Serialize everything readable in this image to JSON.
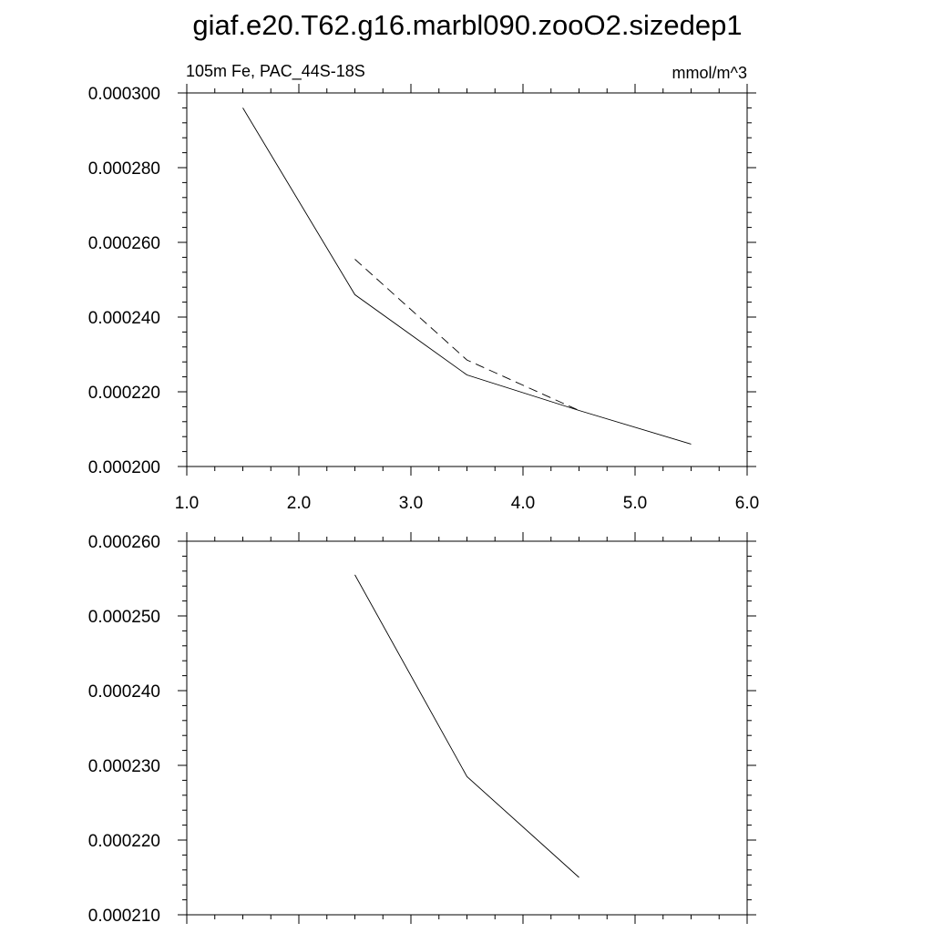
{
  "title": "giaf.e20.T62.g16.marbl090.zooO2.sizedep1",
  "chart_data": [
    {
      "type": "line",
      "left_label": "105m Fe, PAC_44S-18S",
      "right_label": "mmol/m^3",
      "xlim": [
        1.0,
        6.0
      ],
      "ylim": [
        0.0002,
        0.0003
      ],
      "x_ticks": [
        "1.0",
        "2.0",
        "3.0",
        "4.0",
        "5.0",
        "6.0"
      ],
      "y_ticks": [
        "0.000200",
        "0.000220",
        "0.000240",
        "0.000260",
        "0.000280",
        "0.000300"
      ],
      "grid": false,
      "series": [
        {
          "line_style": "solid",
          "x": [
            1.5,
            2.5,
            3.5,
            4.5,
            5.5
          ],
          "y": [
            0.000296,
            0.000246,
            0.0002245,
            0.000215,
            0.000206
          ]
        },
        {
          "line_style": "dashed",
          "x": [
            2.5,
            3.5,
            4.5
          ],
          "y": [
            0.0002555,
            0.0002285,
            0.000215
          ]
        }
      ]
    },
    {
      "type": "line",
      "xlim": [
        1.0,
        6.0
      ],
      "ylim": [
        0.00021,
        0.00026
      ],
      "x_ticks": [],
      "y_ticks": [
        "0.000210",
        "0.000220",
        "0.000230",
        "0.000240",
        "0.000250",
        "0.000260"
      ],
      "grid": false,
      "series": [
        {
          "line_style": "solid",
          "x": [
            2.5,
            3.5,
            4.5
          ],
          "y": [
            0.0002555,
            0.0002285,
            0.000215
          ]
        }
      ]
    }
  ]
}
